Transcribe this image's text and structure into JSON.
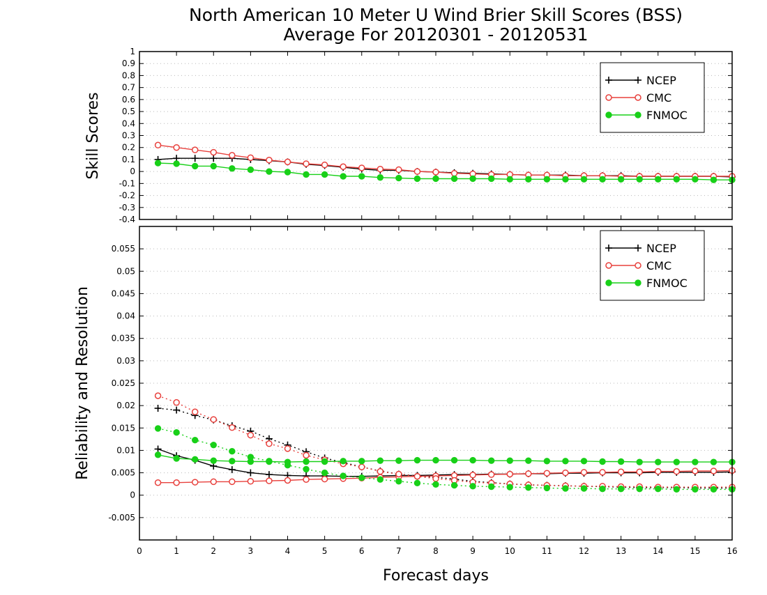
{
  "title_line1": "North American 10 Meter U Wind Brier Skill Scores (BSS)",
  "title_line2": "Average For 20120301 - 20120531",
  "xlabel": "Forecast days",
  "colors": {
    "ncep": "#000000",
    "cmc": "#e8403c",
    "fnmoc": "#18d018"
  },
  "legend": {
    "ncep": "NCEP",
    "cmc": "CMC",
    "fnmoc": "FNMOC"
  },
  "chart_data": [
    {
      "type": "line",
      "ylabel": "Skill Scores",
      "xlim": [
        0,
        16
      ],
      "ylim": [
        -0.4,
        1
      ],
      "x_ticks": [
        "0",
        "1",
        "2",
        "3",
        "4",
        "5",
        "6",
        "7",
        "8",
        "9",
        "10",
        "11",
        "12",
        "13",
        "14",
        "15",
        "16"
      ],
      "y_ticks": [
        "-0.4",
        "-0.3",
        "-0.2",
        "-0.1",
        "0",
        "0.1",
        "0.2",
        "0.3",
        "0.4",
        "0.5",
        "0.6",
        "0.7",
        "0.8",
        "0.9",
        "1"
      ],
      "grid": "horizontal dotted",
      "legend_position": "top-right",
      "x": [
        0.5,
        1,
        1.5,
        2,
        2.5,
        3,
        3.5,
        4,
        4.5,
        5,
        5.5,
        6,
        6.5,
        7,
        7.5,
        8,
        8.5,
        9,
        9.5,
        10,
        10.5,
        11,
        11.5,
        12,
        12.5,
        13,
        13.5,
        14,
        14.5,
        15,
        15.5,
        16
      ],
      "series": [
        {
          "name": "NCEP",
          "style": "plus",
          "values": [
            0.1,
            0.11,
            0.11,
            0.11,
            0.11,
            0.1,
            0.09,
            0.08,
            0.06,
            0.05,
            0.035,
            0.02,
            0.01,
            0.01,
            0.0,
            -0.005,
            -0.01,
            -0.015,
            -0.02,
            -0.025,
            -0.03,
            -0.03,
            -0.03,
            -0.035,
            -0.035,
            -0.035,
            -0.04,
            -0.04,
            -0.04,
            -0.04,
            -0.04,
            -0.045
          ]
        },
        {
          "name": "CMC",
          "style": "open-circle",
          "values": [
            0.22,
            0.2,
            0.18,
            0.16,
            0.135,
            0.115,
            0.095,
            0.08,
            0.065,
            0.055,
            0.04,
            0.03,
            0.02,
            0.015,
            0.0,
            -0.005,
            -0.015,
            -0.02,
            -0.025,
            -0.025,
            -0.03,
            -0.03,
            -0.035,
            -0.035,
            -0.035,
            -0.04,
            -0.04,
            -0.04,
            -0.04,
            -0.04,
            -0.04,
            -0.04
          ]
        },
        {
          "name": "FNMOC",
          "style": "filled-circle",
          "values": [
            0.07,
            0.065,
            0.045,
            0.045,
            0.025,
            0.015,
            0.0,
            -0.005,
            -0.025,
            -0.025,
            -0.04,
            -0.04,
            -0.05,
            -0.055,
            -0.06,
            -0.06,
            -0.06,
            -0.06,
            -0.06,
            -0.065,
            -0.065,
            -0.065,
            -0.065,
            -0.065,
            -0.065,
            -0.065,
            -0.065,
            -0.065,
            -0.065,
            -0.065,
            -0.07,
            -0.07
          ]
        }
      ]
    },
    {
      "type": "line",
      "ylabel": "Reliability and Resolution",
      "xlim": [
        0,
        16
      ],
      "ylim": [
        -0.01,
        0.06
      ],
      "x_ticks": [
        "0",
        "1",
        "2",
        "3",
        "4",
        "5",
        "6",
        "7",
        "8",
        "9",
        "10",
        "11",
        "12",
        "13",
        "14",
        "15",
        "16"
      ],
      "y_ticks": [
        "-0.005",
        "0",
        "0.005",
        "0.01",
        "0.015",
        "0.02",
        "0.025",
        "0.03",
        "0.035",
        "0.04",
        "0.045",
        "0.05",
        "0.055"
      ],
      "y_tick_values": [
        -0.005,
        0,
        0.005,
        0.01,
        0.015,
        0.02,
        0.025,
        0.03,
        0.035,
        0.04,
        0.045,
        0.05,
        0.055
      ],
      "grid": "horizontal dotted",
      "legend_position": "top-right",
      "x": [
        0.5,
        1,
        1.5,
        2,
        2.5,
        3,
        3.5,
        4,
        4.5,
        5,
        5.5,
        6,
        6.5,
        7,
        7.5,
        8,
        8.5,
        9,
        9.5,
        10,
        10.5,
        11,
        11.5,
        12,
        12.5,
        13,
        13.5,
        14,
        14.5,
        15,
        15.5,
        16
      ],
      "series": [
        {
          "name": "NCEP",
          "style": "plus",
          "line": "solid",
          "values": [
            0.0103,
            0.0088,
            0.0078,
            0.0065,
            0.0057,
            0.005,
            0.0046,
            0.0044,
            0.0043,
            0.0043,
            0.0042,
            0.0042,
            0.0043,
            0.0044,
            0.0044,
            0.0045,
            0.0046,
            0.0046,
            0.0047,
            0.0047,
            0.0048,
            0.0048,
            0.0049,
            0.0049,
            0.005,
            0.005,
            0.005,
            0.0051,
            0.0051,
            0.0051,
            0.0051,
            0.0052
          ]
        },
        {
          "name": "NCEP",
          "style": "plus",
          "line": "dotted",
          "values": [
            0.0194,
            0.019,
            0.0178,
            0.0168,
            0.0155,
            0.0143,
            0.0126,
            0.0112,
            0.0097,
            0.0083,
            0.0073,
            0.0063,
            0.0054,
            0.0047,
            0.0043,
            0.004,
            0.0036,
            0.0031,
            0.0028,
            0.0025,
            0.0023,
            0.0022,
            0.0021,
            0.002,
            0.0019,
            0.0018,
            0.0017,
            0.0017,
            0.0017,
            0.0016,
            0.0016,
            0.0016
          ]
        },
        {
          "name": "CMC",
          "style": "open-circle",
          "line": "solid",
          "values": [
            0.0028,
            0.0028,
            0.0029,
            0.003,
            0.003,
            0.0031,
            0.0032,
            0.0033,
            0.0035,
            0.0036,
            0.0037,
            0.0038,
            0.004,
            0.0041,
            0.0042,
            0.0043,
            0.0044,
            0.0045,
            0.0046,
            0.0047,
            0.0048,
            0.0049,
            0.005,
            0.0051,
            0.0051,
            0.0052,
            0.0052,
            0.0053,
            0.0053,
            0.0054,
            0.0054,
            0.0055
          ]
        },
        {
          "name": "CMC",
          "style": "open-circle",
          "line": "dotted",
          "values": [
            0.0222,
            0.0207,
            0.0186,
            0.0169,
            0.0151,
            0.0134,
            0.0115,
            0.0104,
            0.0089,
            0.0079,
            0.007,
            0.0063,
            0.0053,
            0.0047,
            0.0042,
            0.0037,
            0.0033,
            0.0029,
            0.0027,
            0.0025,
            0.0023,
            0.0022,
            0.0021,
            0.002,
            0.002,
            0.0019,
            0.0019,
            0.0018,
            0.0018,
            0.0018,
            0.0018,
            0.0018
          ]
        },
        {
          "name": "FNMOC",
          "style": "filled-circle",
          "line": "solid",
          "values": [
            0.009,
            0.0082,
            0.008,
            0.0077,
            0.0076,
            0.0075,
            0.0075,
            0.0074,
            0.0075,
            0.0075,
            0.0076,
            0.0076,
            0.0077,
            0.0077,
            0.0078,
            0.0078,
            0.0078,
            0.0078,
            0.0077,
            0.0077,
            0.0077,
            0.0076,
            0.0076,
            0.0076,
            0.0075,
            0.0075,
            0.0074,
            0.0074,
            0.0074,
            0.0074,
            0.0074,
            0.0074
          ]
        },
        {
          "name": "FNMOC",
          "style": "filled-circle",
          "line": "dotted",
          "values": [
            0.0149,
            0.014,
            0.0123,
            0.0112,
            0.0098,
            0.0085,
            0.0076,
            0.0067,
            0.0058,
            0.005,
            0.0043,
            0.0039,
            0.0035,
            0.0031,
            0.0027,
            0.0024,
            0.0022,
            0.002,
            0.0019,
            0.0018,
            0.0017,
            0.0016,
            0.0015,
            0.0015,
            0.0014,
            0.0014,
            0.0014,
            0.0014,
            0.0013,
            0.0013,
            0.0013,
            0.0013
          ]
        }
      ]
    }
  ]
}
